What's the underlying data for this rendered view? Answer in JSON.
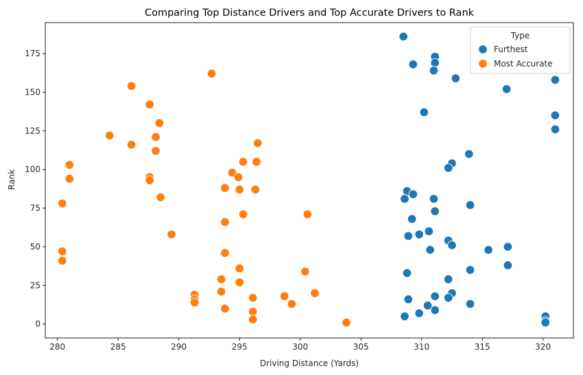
{
  "chart_data": {
    "type": "scatter",
    "title": "Comparing Top Distance Drivers and Top Accurate Drivers to Rank",
    "xlabel": "Driving Distance (Yards)",
    "ylabel": "Rank",
    "xlim": [
      279,
      322.5
    ],
    "ylim": [
      -9,
      195
    ],
    "xticks": [
      280,
      285,
      290,
      295,
      300,
      305,
      310,
      315,
      320
    ],
    "yticks": [
      0,
      25,
      50,
      75,
      100,
      125,
      150,
      175
    ],
    "grid": false,
    "legend": {
      "title": "Type",
      "placement": "top-right"
    },
    "series": [
      {
        "name": "Furthest",
        "color": "#1f77b4",
        "points": [
          [
            308.5,
            186
          ],
          [
            309.3,
            168
          ],
          [
            311.1,
            173
          ],
          [
            311.1,
            169
          ],
          [
            311.0,
            164
          ],
          [
            312.8,
            159
          ],
          [
            317.0,
            152
          ],
          [
            321.0,
            158
          ],
          [
            310.2,
            137
          ],
          [
            321.0,
            135
          ],
          [
            321.0,
            126
          ],
          [
            313.9,
            110
          ],
          [
            312.5,
            104
          ],
          [
            312.2,
            101
          ],
          [
            308.8,
            86
          ],
          [
            309.3,
            84
          ],
          [
            308.6,
            81
          ],
          [
            311.0,
            81
          ],
          [
            311.1,
            73
          ],
          [
            314.0,
            77
          ],
          [
            309.2,
            68
          ],
          [
            310.6,
            60
          ],
          [
            309.8,
            58
          ],
          [
            308.9,
            57
          ],
          [
            312.2,
            54
          ],
          [
            312.5,
            51
          ],
          [
            310.7,
            48
          ],
          [
            315.5,
            48
          ],
          [
            317.1,
            50
          ],
          [
            317.1,
            38
          ],
          [
            314.0,
            35
          ],
          [
            308.8,
            33
          ],
          [
            312.2,
            29
          ],
          [
            312.5,
            20
          ],
          [
            311.1,
            18
          ],
          [
            312.2,
            17
          ],
          [
            308.9,
            16
          ],
          [
            314.0,
            13
          ],
          [
            310.5,
            12
          ],
          [
            311.1,
            9
          ],
          [
            309.8,
            7
          ],
          [
            308.6,
            5
          ],
          [
            320.2,
            5
          ],
          [
            320.2,
            2
          ],
          [
            320.2,
            1
          ]
        ]
      },
      {
        "name": "Most Accurate",
        "color": "#ff7f0e",
        "points": [
          [
            292.7,
            162
          ],
          [
            286.1,
            154
          ],
          [
            287.6,
            142
          ],
          [
            288.4,
            130
          ],
          [
            284.3,
            122
          ],
          [
            288.1,
            121
          ],
          [
            286.1,
            116
          ],
          [
            288.1,
            112
          ],
          [
            296.5,
            117
          ],
          [
            281.0,
            103
          ],
          [
            295.3,
            105
          ],
          [
            296.4,
            105
          ],
          [
            294.4,
            98
          ],
          [
            294.9,
            95
          ],
          [
            287.6,
            95
          ],
          [
            281.0,
            94
          ],
          [
            287.6,
            93
          ],
          [
            293.8,
            88
          ],
          [
            295.0,
            87
          ],
          [
            296.3,
            87
          ],
          [
            288.5,
            82
          ],
          [
            280.4,
            78
          ],
          [
            295.3,
            71
          ],
          [
            300.6,
            71
          ],
          [
            293.8,
            66
          ],
          [
            289.4,
            58
          ],
          [
            280.4,
            47
          ],
          [
            293.8,
            46
          ],
          [
            280.4,
            41
          ],
          [
            295.0,
            36
          ],
          [
            300.4,
            34
          ],
          [
            293.5,
            29
          ],
          [
            295.0,
            27
          ],
          [
            293.5,
            21
          ],
          [
            301.2,
            20
          ],
          [
            291.3,
            19
          ],
          [
            298.7,
            18
          ],
          [
            296.1,
            17
          ],
          [
            291.3,
            16
          ],
          [
            291.3,
            14
          ],
          [
            299.3,
            13
          ],
          [
            293.8,
            10
          ],
          [
            296.1,
            8
          ],
          [
            296.1,
            3
          ],
          [
            303.8,
            1
          ]
        ]
      }
    ]
  }
}
